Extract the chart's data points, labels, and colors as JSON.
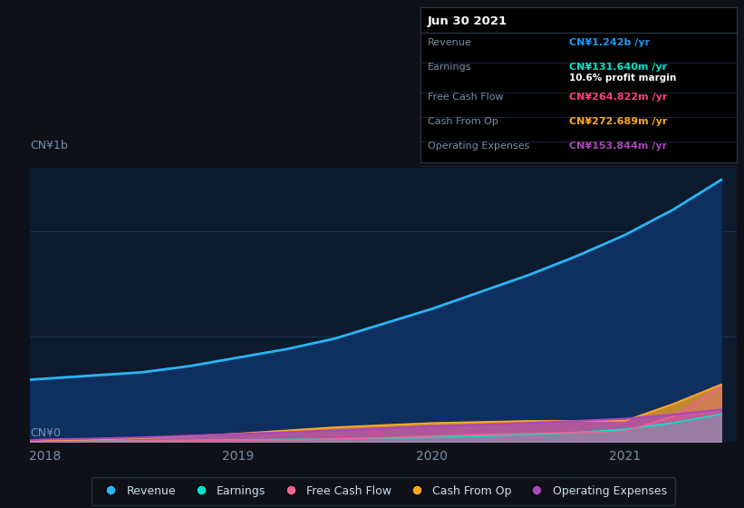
{
  "background_color": "#0e1117",
  "chart_bg_color": "#0d1b2e",
  "grid_color": "#1e3a5f",
  "title_date": "Jun 30 2021",
  "tooltip": {
    "Revenue": {
      "value": "CN¥1.242b",
      "color": "#2196f3"
    },
    "Earnings": {
      "value": "CN¥131.640m",
      "color": "#00e5cc"
    },
    "profit_margin": "10.6%",
    "Free Cash Flow": {
      "value": "CN¥264.822m",
      "color": "#ff4081"
    },
    "Cash From Op": {
      "value": "CN¥272.689m",
      "color": "#ffa726"
    },
    "Operating Expenses": {
      "value": "CN¥153.844m",
      "color": "#ab47bc"
    }
  },
  "ylabel_top": "CN¥1b",
  "ylabel_bottom": "CN¥0",
  "x_years": [
    2017.92,
    2018.0,
    2018.25,
    2018.5,
    2018.75,
    2019.0,
    2019.25,
    2019.5,
    2019.75,
    2020.0,
    2020.25,
    2020.5,
    2020.75,
    2021.0,
    2021.25,
    2021.5
  ],
  "revenue": [
    295,
    300,
    315,
    330,
    360,
    400,
    440,
    490,
    560,
    630,
    710,
    790,
    880,
    980,
    1100,
    1242
  ],
  "earnings": [
    3,
    4,
    5,
    6,
    8,
    10,
    12,
    15,
    18,
    22,
    28,
    35,
    45,
    60,
    90,
    131.64
  ],
  "free_cash_flow": [
    2,
    3,
    4,
    5,
    6,
    8,
    10,
    14,
    20,
    28,
    35,
    40,
    45,
    50,
    120,
    264.822
  ],
  "cash_from_op": [
    5,
    8,
    12,
    18,
    28,
    40,
    55,
    70,
    80,
    90,
    95,
    100,
    100,
    100,
    180,
    272.689
  ],
  "operating_expenses": [
    8,
    12,
    16,
    22,
    30,
    38,
    46,
    55,
    65,
    75,
    82,
    90,
    100,
    110,
    130,
    153.844
  ],
  "revenue_color": "#29b6f6",
  "earnings_color": "#00e5cc",
  "free_cash_flow_color": "#f06292",
  "cash_from_op_color": "#ffa726",
  "operating_expenses_color": "#ab47bc",
  "revenue_fill": "#0d3060",
  "legend_labels": [
    "Revenue",
    "Earnings",
    "Free Cash Flow",
    "Cash From Op",
    "Operating Expenses"
  ],
  "x_tick_labels": [
    "2018",
    "2019",
    "2020",
    "2021"
  ],
  "x_tick_positions": [
    2018,
    2019,
    2020,
    2021
  ],
  "ylim": [
    0,
    1300
  ],
  "xlim": [
    2017.92,
    2021.58
  ]
}
